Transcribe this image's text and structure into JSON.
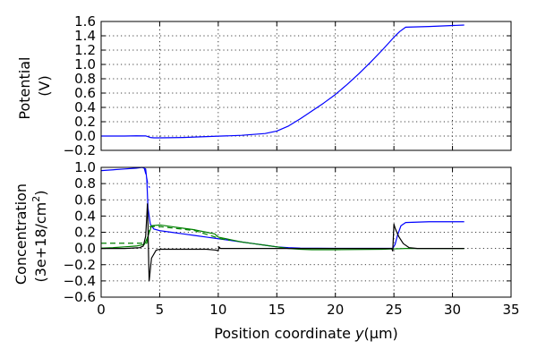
{
  "chart_data": [
    {
      "type": "line",
      "ylabel_lines": [
        "Potential",
        "(V)"
      ],
      "xlim": [
        0,
        35
      ],
      "ylim": [
        -0.2,
        1.6
      ],
      "xticks": [
        0,
        5,
        10,
        15,
        20,
        25,
        30,
        35
      ],
      "xtick_labels_shown": false,
      "yticks": [
        -0.2,
        0.0,
        0.2,
        0.4,
        0.6,
        0.8,
        1.0,
        1.2,
        1.4,
        1.6
      ],
      "ytick_labels": [
        "−0.2",
        "0.0",
        "0.2",
        "0.4",
        "0.6",
        "0.8",
        "1.0",
        "1.2",
        "1.4",
        "1.6"
      ],
      "grid": true,
      "series": [
        {
          "color": "#0000ff",
          "style": "solid",
          "x": [
            0,
            1,
            2,
            3,
            3.8,
            4.2,
            4.5,
            5,
            7,
            9,
            10,
            12,
            14,
            15,
            16,
            17,
            18,
            19,
            20,
            21,
            22,
            23,
            24,
            25,
            25.5,
            26,
            28,
            31
          ],
          "y": [
            0.0,
            0.0,
            0.0,
            0.003,
            0.002,
            -0.02,
            -0.025,
            -0.025,
            -0.02,
            -0.008,
            -0.002,
            0.01,
            0.035,
            0.07,
            0.14,
            0.24,
            0.35,
            0.46,
            0.58,
            0.72,
            0.87,
            1.03,
            1.2,
            1.38,
            1.46,
            1.52,
            1.53,
            1.55
          ]
        }
      ]
    },
    {
      "type": "line",
      "ylabel_lines": [
        "Concentration",
        "(3e+18/cm",
        "2",
        ")"
      ],
      "xlabel_parts": [
        "Position coordinate ",
        "y",
        "(μm)"
      ],
      "xlim": [
        0,
        35
      ],
      "ylim": [
        -0.6,
        1.0
      ],
      "xticks": [
        0,
        5,
        10,
        15,
        20,
        25,
        30,
        35
      ],
      "xtick_labels": [
        "0",
        "5",
        "10",
        "15",
        "20",
        "25",
        "30",
        "35"
      ],
      "yticks": [
        -0.6,
        -0.4,
        -0.2,
        0.0,
        0.2,
        0.4,
        0.6,
        0.8,
        1.0
      ],
      "ytick_labels": [
        "−0.6",
        "−0.4",
        "−0.2",
        "0.0",
        "0.2",
        "0.4",
        "0.6",
        "0.8",
        "1.0"
      ],
      "grid": true,
      "series": [
        {
          "color": "#0000ff",
          "style": "solid",
          "x": [
            0,
            1,
            2,
            3,
            3.5,
            3.8,
            3.9,
            4.0,
            4.2,
            4.5,
            5,
            6,
            7,
            8,
            9,
            10,
            11,
            12,
            13,
            14,
            15,
            16,
            17,
            20,
            24,
            24.9,
            25.1,
            25.3,
            25.6,
            26,
            28,
            31
          ],
          "y": [
            0.96,
            0.97,
            0.98,
            0.99,
            1.0,
            0.98,
            0.85,
            0.5,
            0.3,
            0.24,
            0.22,
            0.2,
            0.18,
            0.16,
            0.14,
            0.12,
            0.1,
            0.08,
            0.06,
            0.04,
            0.02,
            0.01,
            0.005,
            0.002,
            0.001,
            0.003,
            0.05,
            0.16,
            0.28,
            0.32,
            0.33,
            0.33
          ]
        },
        {
          "color": "#0000ff",
          "style": "dashed",
          "x": [
            3.7,
            3.85,
            4.0,
            4.15
          ],
          "y": [
            0.98,
            0.9,
            0.78,
            0.75
          ]
        },
        {
          "color": "#008000",
          "style": "solid",
          "x": [
            0,
            1,
            2,
            3,
            3.7,
            4.0,
            4.3,
            5,
            6,
            7,
            8,
            9,
            9.7,
            10,
            11,
            12,
            13,
            14,
            15,
            16,
            17,
            18,
            20,
            24,
            25,
            26,
            28,
            31
          ],
          "y": [
            0.005,
            0.01,
            0.02,
            0.03,
            0.05,
            0.15,
            0.28,
            0.29,
            0.27,
            0.25,
            0.23,
            0.2,
            0.18,
            0.14,
            0.11,
            0.08,
            0.06,
            0.04,
            0.02,
            0.0,
            -0.01,
            -0.015,
            -0.015,
            -0.01,
            -0.005,
            0.0,
            0.0,
            0.0
          ]
        },
        {
          "color": "#008000",
          "style": "dashed",
          "x": [
            0,
            2,
            3,
            3.9,
            4.1,
            5,
            8,
            10.2,
            11
          ],
          "y": [
            0.065,
            0.065,
            0.065,
            0.065,
            0.27,
            0.27,
            0.22,
            0.12,
            0.1
          ]
        },
        {
          "color": "#000000",
          "style": "solid",
          "x": [
            0,
            2,
            3.3,
            3.6,
            3.8,
            3.9,
            3.95,
            4.0,
            4.05,
            4.1,
            4.3,
            4.7,
            5,
            7,
            9,
            9.8,
            10,
            10.05,
            10.2,
            12,
            15,
            20,
            24.8,
            24.9,
            25.0,
            25.1,
            25.4,
            25.8,
            26.3,
            27,
            31
          ],
          "y": [
            0.0,
            0.0,
            0.01,
            0.03,
            0.15,
            0.4,
            0.55,
            0.3,
            -0.1,
            -0.4,
            -0.12,
            -0.02,
            -0.01,
            -0.01,
            -0.01,
            -0.02,
            -0.03,
            0.02,
            0.0,
            0.0,
            0.0,
            0.0,
            0.0,
            -0.03,
            0.3,
            0.25,
            0.15,
            0.06,
            0.01,
            0.0,
            0.0
          ]
        }
      ]
    }
  ]
}
